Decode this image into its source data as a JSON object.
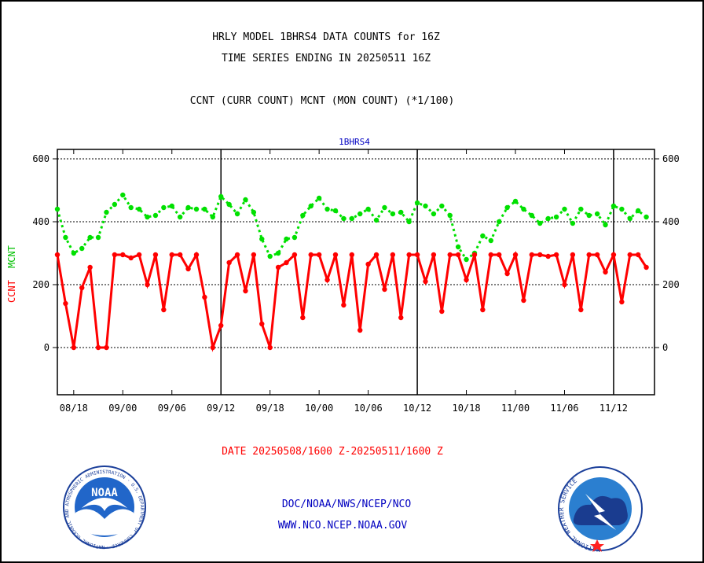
{
  "header": {
    "title_line1": "HRLY MODEL 1BHRS4 DATA COUNTS for 16Z",
    "title_line2": "TIME SERIES ENDING IN 20250511 16Z",
    "subtitle": "CCNT (CURR COUNT) MCNT (MON COUNT) (*1/100)",
    "panel_label": "1BHRS4"
  },
  "footer": {
    "date_range": "DATE 20250508/1600 Z-20250511/1600 Z",
    "org_line": "DOC/NOAA/NWS/NCEP/NCO",
    "url_line": "WWW.NCO.NCEP.NOAA.GOV"
  },
  "logos": {
    "noaa_text": "NOAA",
    "noaa_ring_text": "NATIONAL OCEANIC AND ATMOSPHERIC ADMINISTRATION · U.S. DEPARTMENT OF COMMERCE ·",
    "nws_ring_text": "NATIONAL WEATHER SERVICE"
  },
  "colors": {
    "ccnt": "#ff0000",
    "mcnt": "#00e000",
    "grid": "#000000",
    "text": "#000000",
    "blue_text": "#0000c0",
    "red_text": "#ff0000"
  },
  "chart_data": {
    "type": "line",
    "ylabel_ccnt": "CCNT",
    "ylabel_mcnt": "MCNT",
    "ylim": [
      -150,
      630
    ],
    "yticks": [
      0,
      200,
      400,
      600
    ],
    "ytick_labels": [
      "0",
      "200",
      "400",
      "600"
    ],
    "xlim": [
      0,
      73
    ],
    "xticks": [
      {
        "x": 2,
        "label": "08/18"
      },
      {
        "x": 8,
        "label": "09/00"
      },
      {
        "x": 14,
        "label": "09/06"
      },
      {
        "x": 20,
        "label": "09/12"
      },
      {
        "x": 26,
        "label": "09/18"
      },
      {
        "x": 32,
        "label": "10/00"
      },
      {
        "x": 38,
        "label": "10/06"
      },
      {
        "x": 44,
        "label": "10/12"
      },
      {
        "x": 50,
        "label": "10/18"
      },
      {
        "x": 56,
        "label": "11/00"
      },
      {
        "x": 62,
        "label": "11/06"
      },
      {
        "x": 68,
        "label": "11/12"
      }
    ],
    "day_boundaries": [
      20,
      44,
      68
    ],
    "grid": true,
    "series": [
      {
        "name": "CCNT",
        "style": "solid",
        "values": [
          295,
          140,
          0,
          190,
          255,
          0,
          0,
          295,
          295,
          285,
          295,
          200,
          295,
          120,
          295,
          295,
          250,
          295,
          160,
          0,
          70,
          270,
          295,
          180,
          295,
          75,
          0,
          255,
          270,
          295,
          95,
          295,
          295,
          215,
          295,
          135,
          295,
          55,
          265,
          295,
          185,
          295,
          95,
          295,
          295,
          210,
          295,
          115,
          295,
          295,
          215,
          295,
          120,
          295,
          295,
          235,
          295,
          150,
          295,
          295,
          290,
          295,
          200,
          295,
          120,
          295,
          295,
          240,
          295,
          145,
          295,
          295,
          255
        ]
      },
      {
        "name": "MCNT",
        "style": "dotted",
        "values": [
          440,
          350,
          300,
          315,
          350,
          350,
          430,
          455,
          485,
          445,
          440,
          415,
          420,
          445,
          450,
          415,
          445,
          440,
          440,
          415,
          480,
          455,
          425,
          470,
          430,
          345,
          290,
          300,
          345,
          350,
          420,
          450,
          475,
          440,
          435,
          410,
          410,
          425,
          440,
          405,
          445,
          425,
          430,
          400,
          460,
          450,
          425,
          450,
          420,
          320,
          280,
          300,
          355,
          340,
          400,
          445,
          465,
          440,
          420,
          395,
          410,
          415,
          440,
          395,
          440,
          420,
          425,
          390,
          450,
          440,
          410,
          435,
          415
        ]
      }
    ]
  }
}
